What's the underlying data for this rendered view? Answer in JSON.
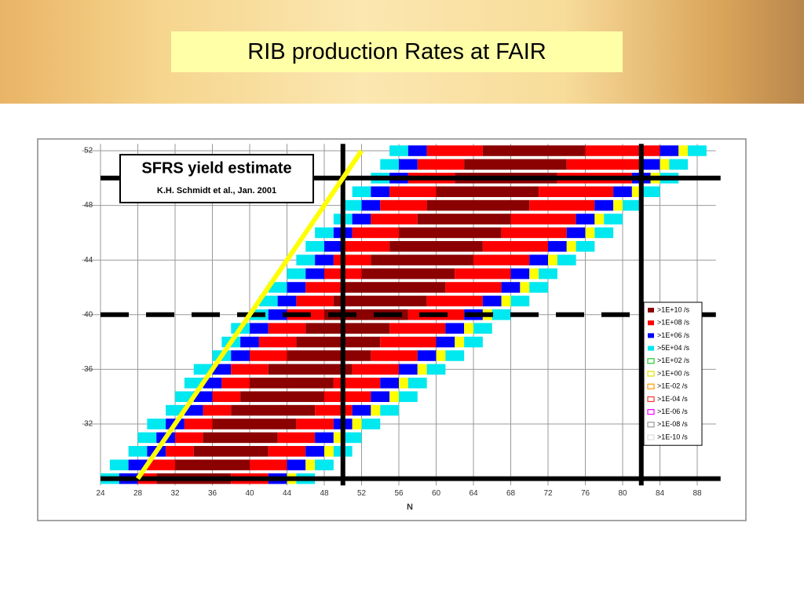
{
  "slide_title": "RIB production Rates at FAIR",
  "chart_data": {
    "type": "nuclide-chart",
    "title": "SFRS yield estimate",
    "subtitle": "K.H. Schmidt et al., Jan. 2001",
    "xlabel": "N",
    "xlim": [
      22,
      90
    ],
    "ylim": [
      27.5,
      52.5
    ],
    "xticks": [
      24,
      28,
      32,
      36,
      40,
      44,
      48,
      52,
      56,
      60,
      64,
      68,
      72,
      76,
      80,
      84,
      88
    ],
    "yticks": [
      32,
      36,
      40,
      44,
      48,
      52
    ],
    "grid": true,
    "segment_colors": [
      "#00e8f0",
      "#0000ff",
      "#ff0000",
      "#8b0000",
      "#ff0000",
      "#0000ff",
      "#ffff00",
      "#00e8f0"
    ],
    "rows": [
      {
        "z": 28,
        "edges": [
          24,
          26,
          28,
          30,
          38,
          42,
          44,
          45,
          47
        ]
      },
      {
        "z": 29,
        "edges": [
          25,
          27,
          29,
          32,
          40,
          44,
          46,
          47,
          49
        ]
      },
      {
        "z": 30,
        "edges": [
          27,
          29,
          31,
          34,
          42,
          46,
          48,
          49,
          51
        ]
      },
      {
        "z": 31,
        "edges": [
          28,
          30,
          32,
          35,
          43,
          47,
          49,
          50,
          52
        ]
      },
      {
        "z": 32,
        "edges": [
          29,
          31,
          33,
          36,
          45,
          49,
          51,
          52,
          54
        ]
      },
      {
        "z": 33,
        "edges": [
          31,
          33,
          35,
          38,
          47,
          51,
          53,
          54,
          56
        ]
      },
      {
        "z": 34,
        "edges": [
          32,
          34,
          36,
          39,
          48,
          53,
          55,
          56,
          58
        ]
      },
      {
        "z": 35,
        "edges": [
          33,
          35,
          37,
          40,
          49,
          54,
          56,
          57,
          59
        ]
      },
      {
        "z": 36,
        "edges": [
          34,
          36,
          38,
          42,
          51,
          56,
          58,
          59,
          61
        ]
      },
      {
        "z": 37,
        "edges": [
          36,
          38,
          40,
          44,
          53,
          58,
          60,
          61,
          63
        ]
      },
      {
        "z": 38,
        "edges": [
          37,
          39,
          41,
          45,
          54,
          60,
          62,
          63,
          65
        ]
      },
      {
        "z": 39,
        "edges": [
          38,
          40,
          42,
          46,
          55,
          61,
          63,
          64,
          66
        ]
      },
      {
        "z": 40,
        "edges": [
          40,
          42,
          44,
          48,
          57,
          63,
          65,
          66,
          68
        ]
      },
      {
        "z": 41,
        "edges": [
          41,
          43,
          45,
          49,
          59,
          65,
          67,
          68,
          70
        ]
      },
      {
        "z": 42,
        "edges": [
          42,
          44,
          46,
          50,
          61,
          67,
          69,
          70,
          72
        ]
      },
      {
        "z": 43,
        "edges": [
          44,
          46,
          48,
          52,
          62,
          68,
          70,
          71,
          73
        ]
      },
      {
        "z": 44,
        "edges": [
          45,
          47,
          49,
          53,
          64,
          70,
          72,
          73,
          75
        ]
      },
      {
        "z": 45,
        "edges": [
          46,
          48,
          50,
          55,
          65,
          72,
          74,
          75,
          77
        ]
      },
      {
        "z": 46,
        "edges": [
          47,
          49,
          51,
          56,
          67,
          74,
          76,
          77,
          79
        ]
      },
      {
        "z": 47,
        "edges": [
          49,
          51,
          53,
          58,
          68,
          75,
          77,
          78,
          80
        ]
      },
      {
        "z": 48,
        "edges": [
          50,
          52,
          54,
          59,
          70,
          77,
          79,
          80,
          82
        ]
      },
      {
        "z": 49,
        "edges": [
          51,
          53,
          55,
          60,
          71,
          79,
          81,
          82,
          84
        ]
      },
      {
        "z": 50,
        "edges": [
          53,
          55,
          57,
          62,
          73,
          81,
          83,
          84,
          86
        ]
      },
      {
        "z": 51,
        "edges": [
          54,
          56,
          58,
          63,
          74,
          82,
          84,
          85,
          87
        ]
      },
      {
        "z": 52,
        "edges": [
          55,
          57,
          59,
          65,
          76,
          84,
          86,
          87,
          89
        ]
      }
    ],
    "magic_n": [
      50,
      82
    ],
    "magic_z": [
      28,
      50
    ],
    "subshell_z": [
      40
    ],
    "n_equals_z": [
      28,
      52
    ],
    "legend": [
      {
        "label": ">1E+10 /s",
        "color": "#8b0000",
        "filled": true
      },
      {
        "label": ">1E+08 /s",
        "color": "#ff0000",
        "filled": true
      },
      {
        "label": ">1E+06 /s",
        "color": "#0000ff",
        "filled": true
      },
      {
        "label": ">5E+04 /s",
        "color": "#00e8f0",
        "filled": true
      },
      {
        "label": ">1E+02 /s",
        "color": "#22cc22",
        "filled": false
      },
      {
        "label": ">1E+00 /s",
        "color": "#e0e000",
        "filled": false
      },
      {
        "label": ">1E-02 /s",
        "color": "#ff9900",
        "filled": false
      },
      {
        "label": ">1E-04 /s",
        "color": "#ff3333",
        "filled": false
      },
      {
        "label": ">1E-06 /s",
        "color": "#ff00ff",
        "filled": false
      },
      {
        "label": ">1E-08 /s",
        "color": "#999999",
        "filled": false
      },
      {
        "label": ">1E-10 /s",
        "color": "#ffffff",
        "filled": false
      }
    ]
  }
}
